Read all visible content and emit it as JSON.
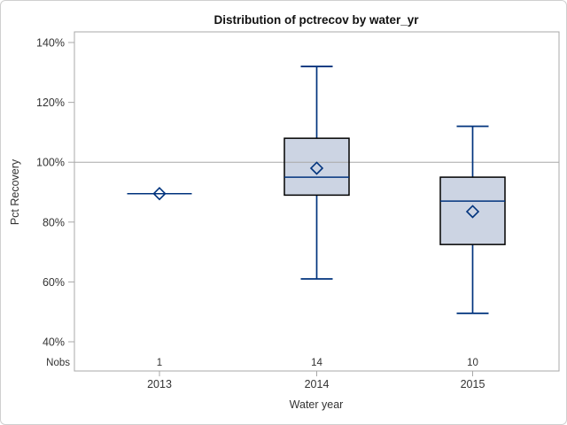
{
  "chart_data": {
    "type": "boxplot",
    "title": "Distribution of pctrecov by water_yr",
    "xlabel": "Water year",
    "ylabel": "Pct Recovery",
    "nobs_label": "Nobs",
    "categories": [
      "2013",
      "2014",
      "2015"
    ],
    "nobs": [
      "1",
      "14",
      "10"
    ],
    "series": [
      {
        "category": "2013",
        "n": 1,
        "min": 89.5,
        "q1": 89.5,
        "median": 89.5,
        "q3": 89.5,
        "max": 89.5,
        "mean": 89.5
      },
      {
        "category": "2014",
        "n": 14,
        "min": 61,
        "q1": 89,
        "median": 95,
        "q3": 108,
        "max": 132,
        "mean": 98
      },
      {
        "category": "2015",
        "n": 10,
        "min": 49.5,
        "q1": 72.5,
        "median": 87,
        "q3": 95,
        "max": 112,
        "mean": 83.5
      }
    ],
    "y_ticks": [
      140,
      120,
      100,
      80,
      60,
      40
    ],
    "y_tick_labels": [
      "140%",
      "120%",
      "100%",
      "80%",
      "60%",
      "40%"
    ],
    "ylim": [
      40,
      140
    ],
    "reference_line": 100,
    "grid": "single reference line at 100%",
    "legend": "none",
    "colors": {
      "box_fill": "#ccd4e3",
      "box_border": "#000000",
      "whisker": "#00337d",
      "reference_line": "#a8a8a8",
      "axis": "#a8a8a8",
      "text": "#333333",
      "figure_border": "#cfcfcf"
    }
  }
}
